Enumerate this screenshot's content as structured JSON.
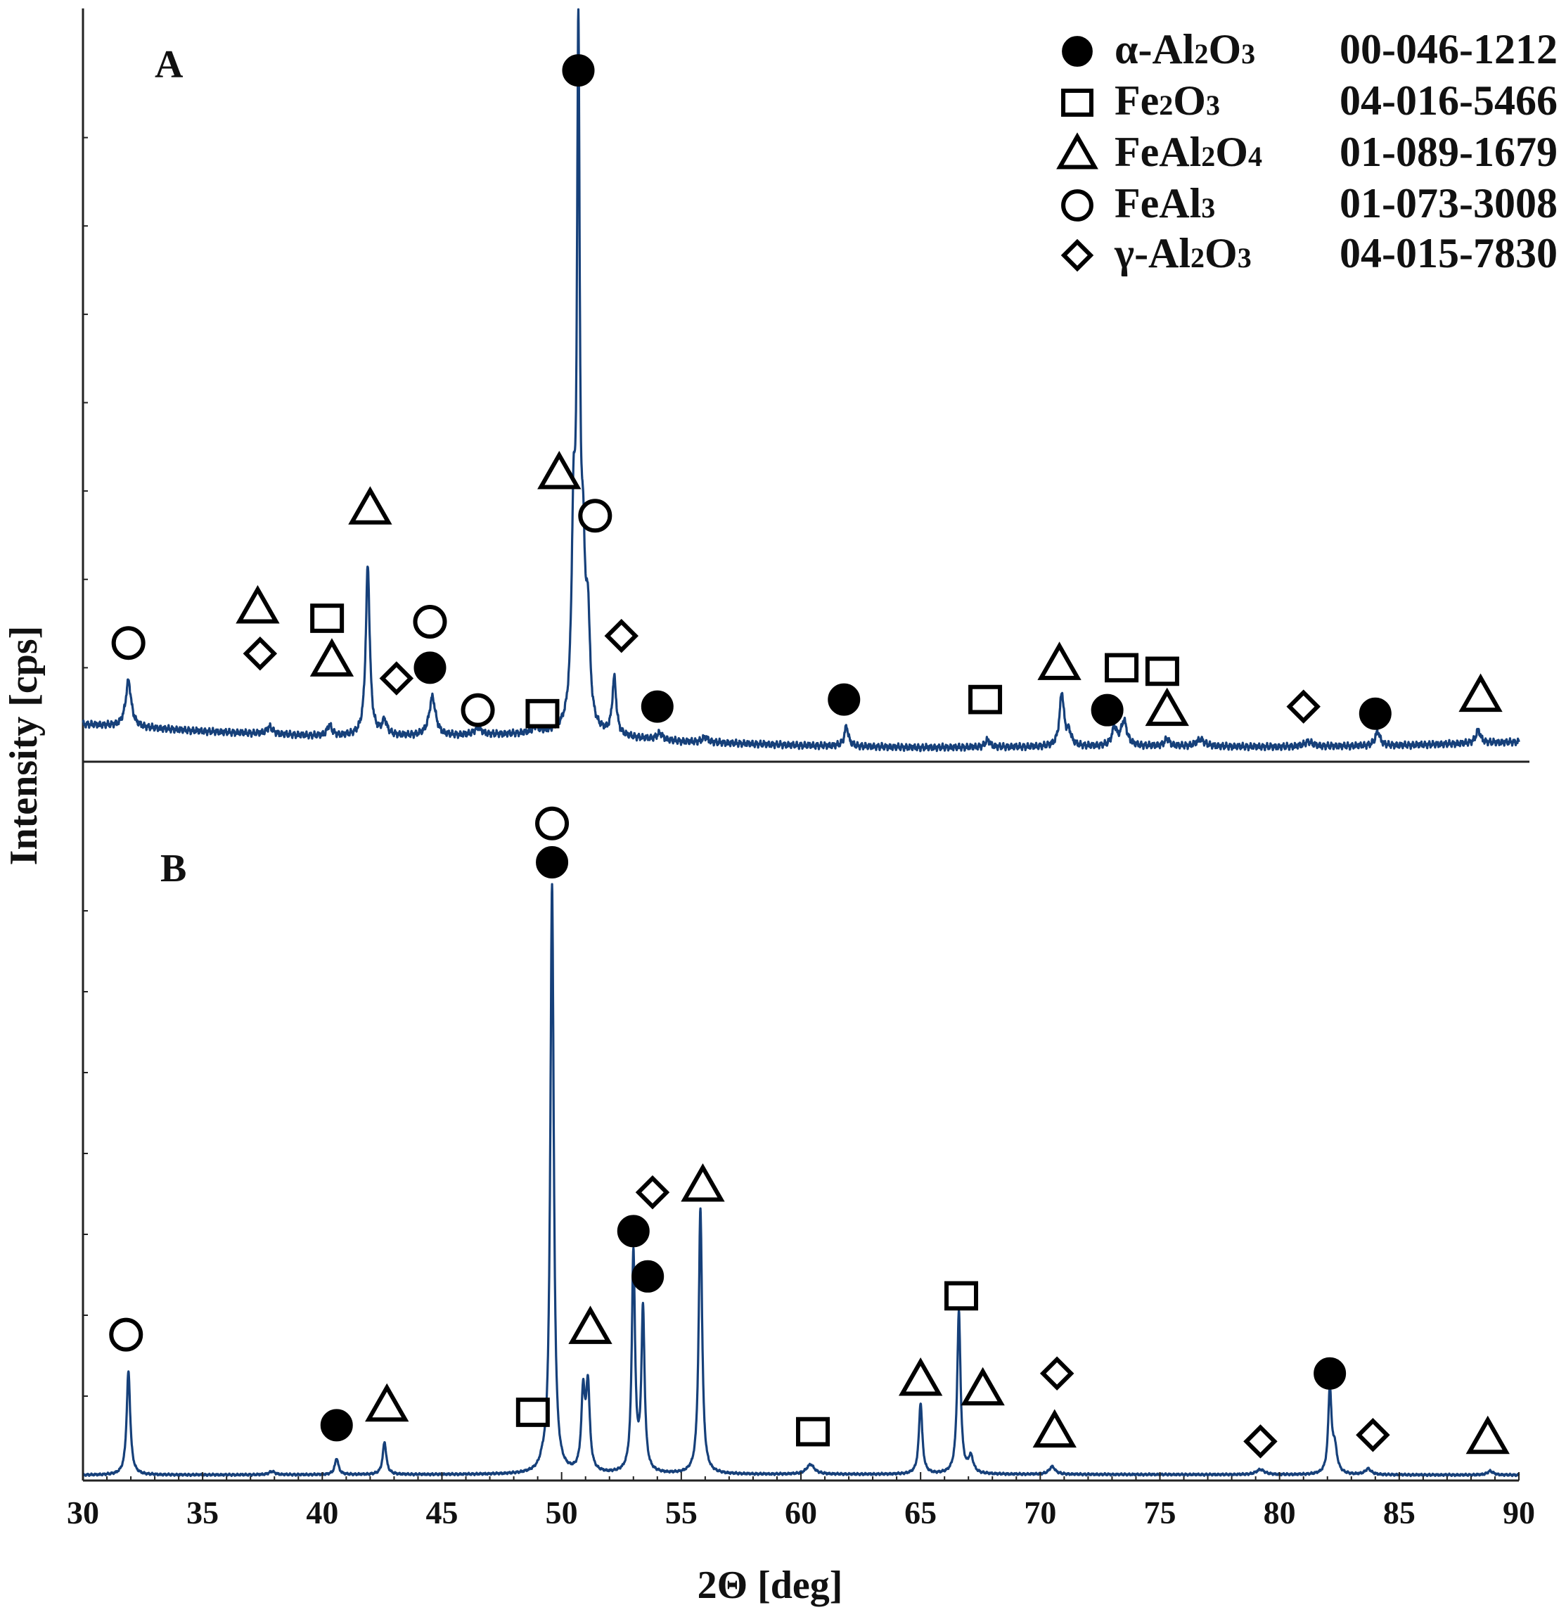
{
  "chart_data": {
    "type": "line",
    "xlabel": "2Θ [deg]",
    "ylabel": "Intensity [cps]",
    "xlim": [
      30,
      90
    ],
    "xticks": [
      30,
      35,
      40,
      45,
      50,
      55,
      60,
      65,
      70,
      75,
      80,
      85,
      90
    ],
    "legend": {
      "placement": "top-right",
      "entries": [
        {
          "marker": "filled-circle",
          "formula": [
            "α-Al",
            "2",
            "O",
            "3"
          ],
          "card": "00-046-1212"
        },
        {
          "marker": "open-square",
          "formula": [
            "Fe",
            "2",
            "O",
            "3"
          ],
          "card": "04-016-5466"
        },
        {
          "marker": "open-triangle",
          "formula": [
            "FeAl",
            "2",
            "O",
            "4"
          ],
          "card": "01-089-1679"
        },
        {
          "marker": "open-circle",
          "formula": [
            "FeAl",
            "3"
          ],
          "card": "01-073-3008"
        },
        {
          "marker": "open-diamond",
          "formula": [
            "γ-Al",
            "2",
            "O",
            "3"
          ],
          "card": "04-015-7830"
        }
      ]
    },
    "panels": [
      {
        "label": "A",
        "ylim": [
          0,
          100
        ],
        "baseline": [
          [
            30,
            4.5
          ],
          [
            35,
            3.5
          ],
          [
            40,
            2.8
          ],
          [
            45,
            2.8
          ],
          [
            50,
            3.2
          ],
          [
            55,
            2.0
          ],
          [
            60,
            1.5
          ],
          [
            65,
            1.2
          ],
          [
            70,
            1.3
          ],
          [
            75,
            1.4
          ],
          [
            80,
            1.3
          ],
          [
            85,
            1.5
          ],
          [
            90,
            2.0
          ]
        ],
        "peaks": [
          {
            "x": 31.9,
            "h": 6.5,
            "w": 0.14
          },
          {
            "x": 37.8,
            "h": 1.0,
            "w": 0.15
          },
          {
            "x": 40.3,
            "h": 1.5,
            "w": 0.12
          },
          {
            "x": 41.9,
            "h": 24.0,
            "w": 0.1
          },
          {
            "x": 42.6,
            "h": 2.0,
            "w": 0.12
          },
          {
            "x": 44.6,
            "h": 5.5,
            "w": 0.16
          },
          {
            "x": 46.5,
            "h": 1.0,
            "w": 0.18
          },
          {
            "x": 48.9,
            "h": 0.8,
            "w": 0.15
          },
          {
            "x": 50.5,
            "h": 27.0,
            "w": 0.1
          },
          {
            "x": 50.7,
            "h": 92.0,
            "w": 0.07
          },
          {
            "x": 50.9,
            "h": 20.0,
            "w": 0.1
          },
          {
            "x": 51.1,
            "h": 14.0,
            "w": 0.1
          },
          {
            "x": 52.2,
            "h": 8.0,
            "w": 0.1
          },
          {
            "x": 54.1,
            "h": 0.9,
            "w": 0.15
          },
          {
            "x": 56.0,
            "h": 0.7,
            "w": 0.15
          },
          {
            "x": 61.9,
            "h": 2.8,
            "w": 0.1
          },
          {
            "x": 67.8,
            "h": 1.0,
            "w": 0.12
          },
          {
            "x": 70.9,
            "h": 7.5,
            "w": 0.11
          },
          {
            "x": 71.2,
            "h": 1.8,
            "w": 0.12
          },
          {
            "x": 73.1,
            "h": 2.5,
            "w": 0.12
          },
          {
            "x": 73.5,
            "h": 3.5,
            "w": 0.15
          },
          {
            "x": 75.3,
            "h": 1.0,
            "w": 0.12
          },
          {
            "x": 76.7,
            "h": 1.0,
            "w": 0.2
          },
          {
            "x": 81.2,
            "h": 0.7,
            "w": 0.2
          },
          {
            "x": 84.1,
            "h": 2.0,
            "w": 0.12
          },
          {
            "x": 88.3,
            "h": 1.8,
            "w": 0.12
          }
        ],
        "markers": [
          {
            "type": "filled-circle",
            "x": 50.7,
            "y": 97
          },
          {
            "type": "open-triangle",
            "x": 42.0,
            "y": 35
          },
          {
            "type": "open-triangle",
            "x": 49.9,
            "y": 40
          },
          {
            "type": "open-circle",
            "x": 51.4,
            "y": 34
          },
          {
            "type": "open-circle",
            "x": 31.9,
            "y": 16
          },
          {
            "type": "open-triangle",
            "x": 37.3,
            "y": 21
          },
          {
            "type": "open-diamond",
            "x": 37.4,
            "y": 14.5
          },
          {
            "type": "open-square",
            "x": 40.2,
            "y": 19.5
          },
          {
            "type": "open-triangle",
            "x": 40.4,
            "y": 13.5
          },
          {
            "type": "open-circle",
            "x": 44.5,
            "y": 19
          },
          {
            "type": "open-diamond",
            "x": 43.1,
            "y": 11
          },
          {
            "type": "filled-circle",
            "x": 44.5,
            "y": 12.5
          },
          {
            "type": "open-circle",
            "x": 46.5,
            "y": 6.5
          },
          {
            "type": "open-square",
            "x": 49.2,
            "y": 6
          },
          {
            "type": "open-diamond",
            "x": 52.5,
            "y": 17
          },
          {
            "type": "filled-circle",
            "x": 54.0,
            "y": 7
          },
          {
            "type": "filled-circle",
            "x": 61.8,
            "y": 8
          },
          {
            "type": "open-square",
            "x": 67.7,
            "y": 8
          },
          {
            "type": "open-triangle",
            "x": 70.8,
            "y": 13
          },
          {
            "type": "filled-circle",
            "x": 72.8,
            "y": 6.5
          },
          {
            "type": "open-square",
            "x": 73.4,
            "y": 12.5
          },
          {
            "type": "open-square",
            "x": 75.1,
            "y": 12
          },
          {
            "type": "open-triangle",
            "x": 75.3,
            "y": 6.5
          },
          {
            "type": "open-diamond",
            "x": 81.0,
            "y": 7
          },
          {
            "type": "filled-circle",
            "x": 84.0,
            "y": 6
          },
          {
            "type": "open-triangle",
            "x": 88.4,
            "y": 8.5
          }
        ]
      },
      {
        "label": "B",
        "ylim": [
          0,
          100
        ],
        "baseline": [
          [
            30,
            0.3
          ],
          [
            50,
            0.4
          ],
          [
            70,
            0.4
          ],
          [
            90,
            0.3
          ]
        ],
        "peaks": [
          {
            "x": 31.9,
            "h": 16.0,
            "w": 0.09
          },
          {
            "x": 37.9,
            "h": 0.5,
            "w": 0.15
          },
          {
            "x": 40.6,
            "h": 2.5,
            "w": 0.09
          },
          {
            "x": 42.6,
            "h": 5.0,
            "w": 0.09
          },
          {
            "x": 49.2,
            "h": 0.8,
            "w": 0.12
          },
          {
            "x": 49.6,
            "h": 91.0,
            "w": 0.085
          },
          {
            "x": 50.9,
            "h": 12.0,
            "w": 0.09
          },
          {
            "x": 51.1,
            "h": 13.0,
            "w": 0.09
          },
          {
            "x": 53.0,
            "h": 34.0,
            "w": 0.08
          },
          {
            "x": 53.4,
            "h": 25.0,
            "w": 0.08
          },
          {
            "x": 55.8,
            "h": 41.0,
            "w": 0.085
          },
          {
            "x": 60.4,
            "h": 1.5,
            "w": 0.2
          },
          {
            "x": 65.0,
            "h": 11.0,
            "w": 0.085
          },
          {
            "x": 66.6,
            "h": 25.0,
            "w": 0.085
          },
          {
            "x": 67.1,
            "h": 2.5,
            "w": 0.12
          },
          {
            "x": 70.5,
            "h": 1.2,
            "w": 0.15
          },
          {
            "x": 79.2,
            "h": 0.8,
            "w": 0.2
          },
          {
            "x": 82.1,
            "h": 13.0,
            "w": 0.08
          },
          {
            "x": 82.3,
            "h": 4.0,
            "w": 0.12
          },
          {
            "x": 83.7,
            "h": 0.9,
            "w": 0.15
          },
          {
            "x": 88.8,
            "h": 0.6,
            "w": 0.15
          }
        ],
        "markers": [
          {
            "type": "open-circle",
            "x": 49.6,
            "y": 101
          },
          {
            "type": "filled-circle",
            "x": 49.6,
            "y": 95
          },
          {
            "type": "open-circle",
            "x": 31.8,
            "y": 22
          },
          {
            "type": "filled-circle",
            "x": 40.6,
            "y": 8
          },
          {
            "type": "open-triangle",
            "x": 42.7,
            "y": 11
          },
          {
            "type": "open-square",
            "x": 48.8,
            "y": 10
          },
          {
            "type": "open-triangle",
            "x": 51.2,
            "y": 23
          },
          {
            "type": "open-diamond",
            "x": 53.8,
            "y": 44
          },
          {
            "type": "open-triangle",
            "x": 55.9,
            "y": 45
          },
          {
            "type": "filled-circle",
            "x": 53.0,
            "y": 38
          },
          {
            "type": "filled-circle",
            "x": 53.6,
            "y": 31
          },
          {
            "type": "open-square",
            "x": 60.5,
            "y": 7
          },
          {
            "type": "open-triangle",
            "x": 65.0,
            "y": 15
          },
          {
            "type": "open-square",
            "x": 66.7,
            "y": 28
          },
          {
            "type": "open-triangle",
            "x": 67.6,
            "y": 13.5
          },
          {
            "type": "open-diamond",
            "x": 70.7,
            "y": 16
          },
          {
            "type": "open-triangle",
            "x": 70.6,
            "y": 7
          },
          {
            "type": "filled-circle",
            "x": 82.1,
            "y": 16
          },
          {
            "type": "open-diamond",
            "x": 79.2,
            "y": 5.5
          },
          {
            "type": "open-diamond",
            "x": 83.9,
            "y": 6.5
          },
          {
            "type": "open-triangle",
            "x": 88.7,
            "y": 6
          }
        ]
      }
    ]
  }
}
